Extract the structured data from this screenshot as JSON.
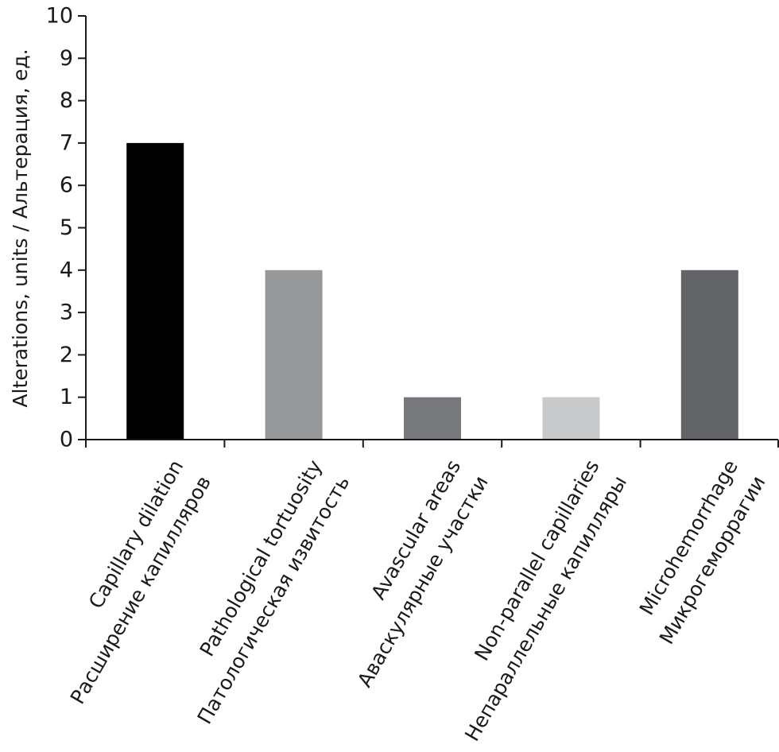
{
  "chart_data": {
    "type": "bar",
    "categories": [
      [
        "Capillary dilation",
        "Расширение капилляров"
      ],
      [
        "Pathological tortuosity",
        "Патологическая извитость"
      ],
      [
        "Avascular areas",
        "Аваскулярные участки"
      ],
      [
        "Non-parallel capillaries",
        "Непараллельные капилляры"
      ],
      [
        "Microhemorrhage",
        "Микрогеморрагии"
      ]
    ],
    "values": [
      7,
      4,
      1,
      1,
      4
    ],
    "colors": [
      "#000000",
      "#97989a",
      "#77787b",
      "#c8c9ca",
      "#636467"
    ],
    "ylabel": "Alterations, units / Альтерация, ед.",
    "ylim": [
      0,
      10
    ],
    "yticks": [
      0,
      1,
      2,
      3,
      4,
      5,
      6,
      7,
      8,
      9,
      10
    ],
    "grid": false,
    "legend": "none"
  }
}
